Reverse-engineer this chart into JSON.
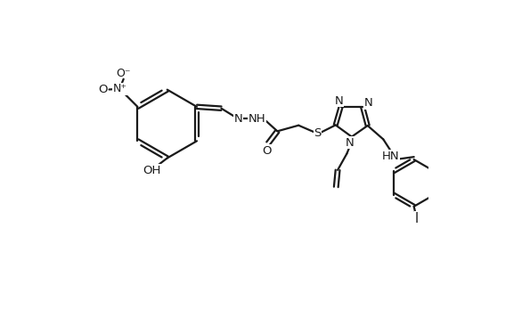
{
  "background_color": "#ffffff",
  "line_color": "#1a1a1a",
  "line_width": 1.6,
  "font_size": 9.5,
  "fig_width": 5.95,
  "fig_height": 3.66,
  "dpi": 100,
  "xlim": [
    0,
    10
  ],
  "ylim": [
    0,
    10
  ]
}
